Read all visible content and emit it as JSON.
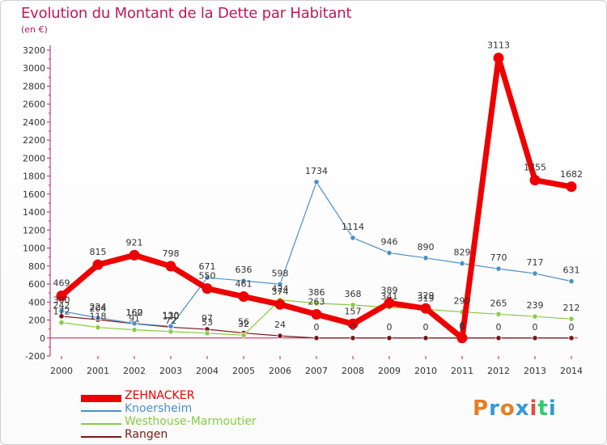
{
  "header": {
    "title": "Evolution du Montant de la Dette par Habitant",
    "subtitle": "(en €)"
  },
  "brand": {
    "text": "Proxiti",
    "colors": [
      "#e67e22",
      "#3498db",
      "#e67e22",
      "#3498db",
      "#e74c3c",
      "#2ecc71",
      "#3498db"
    ]
  },
  "chart_data": {
    "type": "line",
    "title": "Evolution du Montant de la Dette par Habitant",
    "subtitle": "(en €)",
    "x": [
      "2000",
      "2001",
      "2002",
      "2003",
      "2004",
      "2005",
      "2006",
      "2007",
      "2008",
      "2009",
      "2010",
      "2011",
      "2012",
      "2013",
      "2014"
    ],
    "ylim": [
      -200,
      3200
    ],
    "yticks": [
      -200,
      0,
      200,
      400,
      600,
      800,
      1000,
      1200,
      1400,
      1600,
      1800,
      2000,
      2200,
      2400,
      2600,
      2800,
      3000,
      3200
    ],
    "grid": false,
    "legend_position": "bottom-left",
    "series": [
      {
        "name": "ZEHNACKER",
        "color": "#ee0000",
        "values": [
          469,
          815,
          921,
          798,
          550,
          461,
          374,
          263,
          157,
          389,
          329,
          0,
          3113,
          1755,
          1682
        ],
        "labels": [
          "469",
          "815",
          "921",
          "798",
          "550",
          "461",
          "374",
          "263",
          "157",
          "389",
          "329",
          "0",
          "3113",
          "1755",
          "1682"
        ]
      },
      {
        "name": "Knoersheim",
        "color": "#4a90c8",
        "values": [
          300,
          224,
          162,
          130,
          671,
          636,
          598,
          1734,
          1114,
          946,
          890,
          829,
          770,
          717,
          631
        ],
        "labels": [
          "300",
          "224",
          "162",
          "130",
          "671",
          "636",
          "598",
          "1734",
          "1114",
          "946",
          "890",
          "829",
          "770",
          "717",
          "631"
        ]
      },
      {
        "name": "Westhouse-Marmoutier",
        "color": "#88cc44",
        "values": [
          172,
          118,
          91,
          72,
          53,
          32,
          424,
          386,
          368,
          341,
          319,
          290,
          265,
          239,
          212
        ],
        "labels": [
          "172",
          "118",
          "91",
          "72",
          "53",
          "32",
          "424",
          "386",
          "368",
          "341",
          "319",
          "290",
          "265",
          "239",
          "212"
        ]
      },
      {
        "name": "Rangen",
        "color": "#7a1818",
        "values": [
          242,
          204,
          160,
          120,
          97,
          56,
          24,
          0,
          0,
          0,
          0,
          0,
          0,
          0,
          0
        ],
        "labels": [
          "242",
          "204",
          "160",
          "120",
          "97",
          "56",
          "24",
          "0",
          "0",
          "0",
          "0",
          "0",
          "0",
          "0",
          "0"
        ]
      }
    ]
  }
}
